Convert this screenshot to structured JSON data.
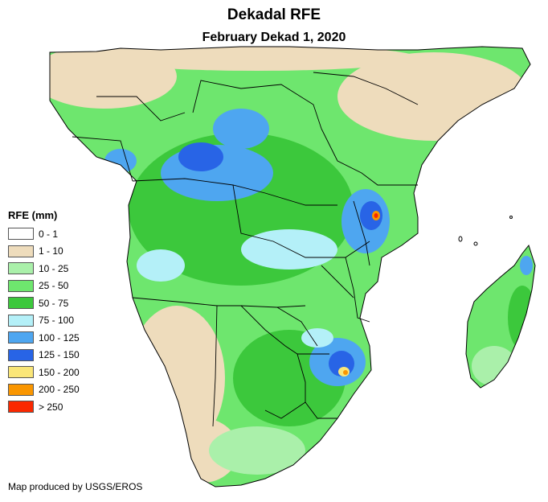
{
  "header": {
    "title": "Dekadal RFE",
    "subtitle": "February Dekad 1, 2020"
  },
  "legend": {
    "title": "RFE (mm)",
    "items": [
      {
        "label": "0 - 1",
        "color": "#ffffff"
      },
      {
        "label": "1 - 10",
        "color": "#eedcbc"
      },
      {
        "label": "10 - 25",
        "color": "#aaf0aa"
      },
      {
        "label": "25 - 50",
        "color": "#6ee66e"
      },
      {
        "label": "50 - 75",
        "color": "#3cc83c"
      },
      {
        "label": "75 - 100",
        "color": "#b4f0f8"
      },
      {
        "label": "100 - 125",
        "color": "#4ea6f0"
      },
      {
        "label": "125 - 150",
        "color": "#2864e6"
      },
      {
        "label": "150 - 200",
        "color": "#fae678"
      },
      {
        "label": "200 - 250",
        "color": "#fa9600"
      },
      {
        "label": "> 250",
        "color": "#fa2800"
      }
    ]
  },
  "footer": {
    "credit": "Map produced by USGS/EROS"
  },
  "map": {
    "region": "Central and Southern Africa with Madagascar",
    "coastline_color": "#000000",
    "border_color": "#000000"
  }
}
